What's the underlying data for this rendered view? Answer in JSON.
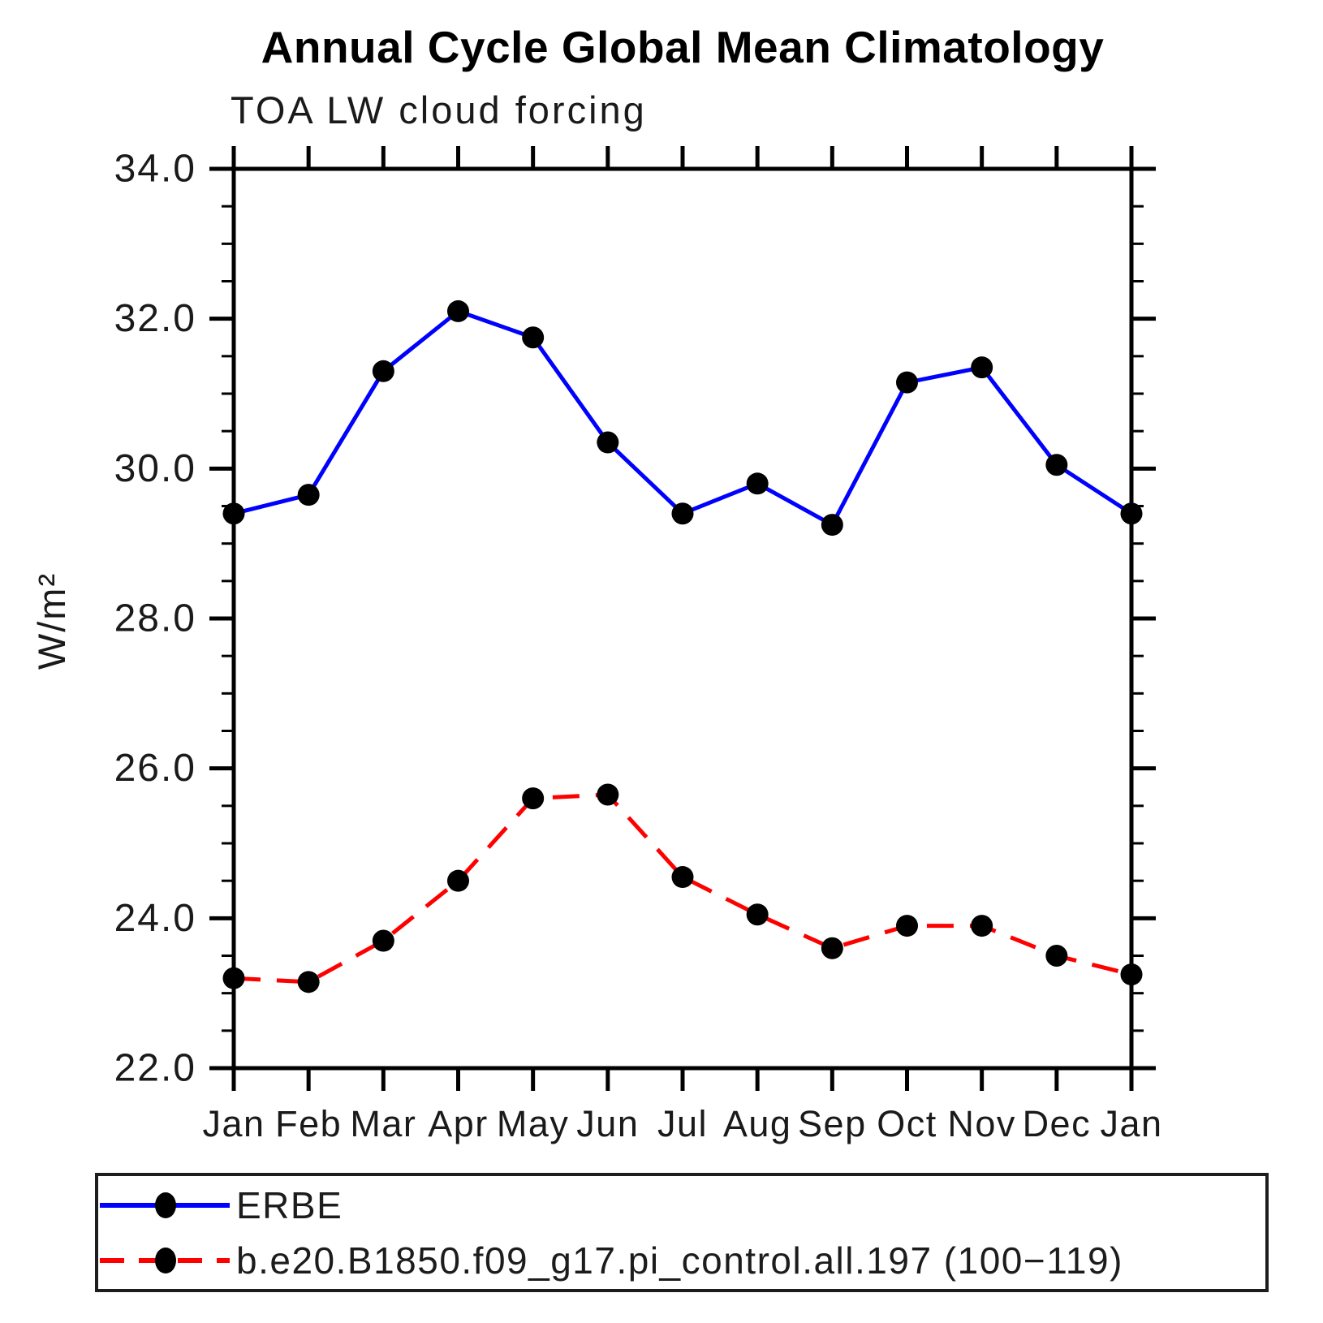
{
  "title": "Annual Cycle Global Mean Climatology",
  "subtitle": "TOA LW cloud forcing",
  "chart_data": {
    "type": "line",
    "x_categories": [
      "Jan",
      "Feb",
      "Mar",
      "Apr",
      "May",
      "Jun",
      "Jul",
      "Aug",
      "Sep",
      "Oct",
      "Nov",
      "Dec",
      "Jan"
    ],
    "ylabel": "W/m²",
    "ylim": [
      22.0,
      34.0
    ],
    "ytick_major": 2.0,
    "ytick_minor": 0.5,
    "ytick_labels": [
      "22.0",
      "24.0",
      "26.0",
      "28.0",
      "30.0",
      "32.0",
      "34.0"
    ],
    "grid": false,
    "legend_position": "bottom",
    "frame_color": "#000000",
    "marker_color": "#000000",
    "series": [
      {
        "name": "ERBE",
        "color": "#0000ff",
        "style": "solid",
        "marker": "circle",
        "values": [
          29.4,
          29.65,
          31.3,
          32.1,
          31.75,
          30.35,
          29.4,
          29.8,
          29.25,
          31.15,
          31.35,
          30.05,
          29.4
        ]
      },
      {
        "name": "b.e20.B1850.f09_g17.pi_control.all.197 (100−119)",
        "color": "#ff0000",
        "style": "dashed",
        "marker": "circle",
        "values": [
          23.2,
          23.15,
          23.7,
          24.5,
          25.6,
          25.65,
          24.55,
          24.05,
          23.6,
          23.9,
          23.9,
          23.5,
          23.25
        ]
      }
    ]
  }
}
